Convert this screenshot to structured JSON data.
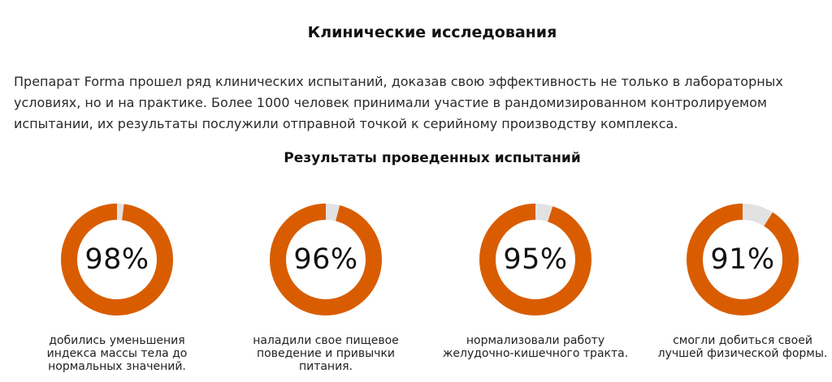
{
  "header": {
    "title": "Клинические исследования"
  },
  "intro": {
    "text": "Препарат Forma прошел ряд клинических испытаний, доказав свою эффективность не только в лабораторных условиях, но и на практике. Более 1000 человек принимали участие в рандомизированном контролируемом испытании, их результаты послужили отправной точкой к серийному производству комплекса."
  },
  "results": {
    "title": "Результаты проведенных испытаний",
    "colors": {
      "fill": "#d95d00",
      "track": "#e2e2e2"
    },
    "items": [
      {
        "percent": 98,
        "value_label": "98%",
        "caption": "добились уменьшения индекса массы тела до нормальных значений."
      },
      {
        "percent": 96,
        "value_label": "96%",
        "caption": "наладили свое пищевое поведение и привычки питания."
      },
      {
        "percent": 95,
        "value_label": "95%",
        "caption": "нормализовали работу желудочно-кишечного тракта."
      },
      {
        "percent": 91,
        "value_label": "91%",
        "caption": "смогли добиться своей лучшей физической формы."
      }
    ]
  }
}
